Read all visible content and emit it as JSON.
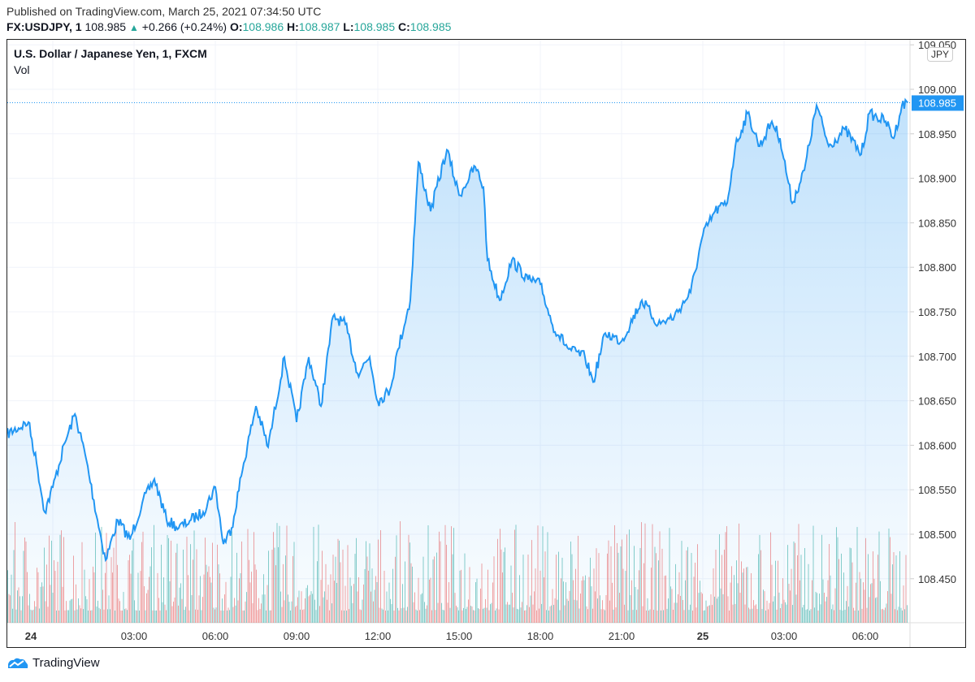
{
  "header": {
    "published": "Published on TradingView.com, March 25, 2021 07:34:50 UTC",
    "symbol": "FX:USDJPY, 1",
    "last": "108.985",
    "change": "+0.266 (+0.24%)",
    "open_label": "O:",
    "open": "108.986",
    "high_label": "H:",
    "high": "108.987",
    "low_label": "L:",
    "low": "108.985",
    "close_label": "C:",
    "close": "108.985"
  },
  "legend": {
    "title": "U.S. Dollar / Japanese Yen, 1, FXCM",
    "volume": "Vol"
  },
  "currency_button": "JPY",
  "footer": {
    "brand": "TradingView"
  },
  "colors": {
    "line": "#2196f3",
    "up": "#26a69a",
    "down": "#ef5350",
    "price_label_bg": "#2196f3"
  },
  "chart_data": {
    "type": "area",
    "ylim": [
      108.41,
      109.05
    ],
    "y_ticks": [
      "109.050",
      "109.000",
      "108.950",
      "108.900",
      "108.850",
      "108.800",
      "108.750",
      "108.700",
      "108.650",
      "108.600",
      "108.550",
      "108.500",
      "108.450"
    ],
    "x_ticks": [
      {
        "label": "24",
        "bold": true,
        "t": "24 00:00"
      },
      {
        "label": "03:00",
        "t": "24 03:00"
      },
      {
        "label": "06:00",
        "t": "24 06:00"
      },
      {
        "label": "09:00",
        "t": "24 09:00"
      },
      {
        "label": "12:00",
        "t": "24 12:00"
      },
      {
        "label": "15:00",
        "t": "24 15:00"
      },
      {
        "label": "18:00",
        "t": "24 18:00"
      },
      {
        "label": "21:00",
        "t": "24 21:00"
      },
      {
        "label": "25",
        "bold": true,
        "t": "25 00:00"
      },
      {
        "label": "03:00",
        "t": "25 03:00"
      },
      {
        "label": "06:00",
        "t": "25 06:00"
      }
    ],
    "last_price": "108.985",
    "series": [
      [
        "23 22:17",
        108.612
      ],
      [
        "23 23:06",
        108.626
      ],
      [
        "23 23:24",
        108.58
      ],
      [
        "23 23:42",
        108.525
      ],
      [
        "24 00:00",
        108.553
      ],
      [
        "24 00:27",
        108.603
      ],
      [
        "24 00:49",
        108.635
      ],
      [
        "24 01:12",
        108.589
      ],
      [
        "24 01:39",
        108.516
      ],
      [
        "24 01:57",
        108.471
      ],
      [
        "24 02:24",
        108.516
      ],
      [
        "24 02:51",
        108.494
      ],
      [
        "24 03:18",
        108.535
      ],
      [
        "24 03:45",
        108.562
      ],
      [
        "24 04:12",
        108.516
      ],
      [
        "24 04:39",
        108.507
      ],
      [
        "24 05:06",
        108.516
      ],
      [
        "24 05:33",
        108.525
      ],
      [
        "24 06:00",
        108.553
      ],
      [
        "24 06:18",
        108.489
      ],
      [
        "24 06:36",
        108.507
      ],
      [
        "24 07:03",
        108.58
      ],
      [
        "24 07:30",
        108.644
      ],
      [
        "24 07:57",
        108.598
      ],
      [
        "24 08:33",
        108.699
      ],
      [
        "24 09:00",
        108.626
      ],
      [
        "24 09:27",
        108.699
      ],
      [
        "24 09:54",
        108.644
      ],
      [
        "24 10:21",
        108.745
      ],
      [
        "24 10:48",
        108.736
      ],
      [
        "24 11:15",
        108.681
      ],
      [
        "24 11:42",
        108.699
      ],
      [
        "24 12:00",
        108.649
      ],
      [
        "24 12:27",
        108.662
      ],
      [
        "24 12:45",
        108.708
      ],
      [
        "24 13:12",
        108.763
      ],
      [
        "24 13:30",
        108.918
      ],
      [
        "24 13:57",
        108.863
      ],
      [
        "24 14:33",
        108.932
      ],
      [
        "24 15:00",
        108.881
      ],
      [
        "24 15:36",
        108.913
      ],
      [
        "24 15:54",
        108.89
      ],
      [
        "24 16:03",
        108.808
      ],
      [
        "24 16:30",
        108.763
      ],
      [
        "24 16:57",
        108.808
      ],
      [
        "24 17:33",
        108.786
      ],
      [
        "24 18:00",
        108.781
      ],
      [
        "24 18:27",
        108.735
      ],
      [
        "24 19:03",
        108.708
      ],
      [
        "24 19:39",
        108.699
      ],
      [
        "24 19:57",
        108.671
      ],
      [
        "24 20:24",
        108.726
      ],
      [
        "24 21:00",
        108.717
      ],
      [
        "24 21:45",
        108.763
      ],
      [
        "24 22:21",
        108.736
      ],
      [
        "24 22:57",
        108.745
      ],
      [
        "24 23:33",
        108.772
      ],
      [
        "25 00:00",
        108.836
      ],
      [
        "25 00:27",
        108.863
      ],
      [
        "25 00:54",
        108.872
      ],
      [
        "25 01:12",
        108.936
      ],
      [
        "25 01:39",
        108.973
      ],
      [
        "25 02:06",
        108.936
      ],
      [
        "25 02:33",
        108.964
      ],
      [
        "25 02:51",
        108.945
      ],
      [
        "25 03:18",
        108.872
      ],
      [
        "25 03:45",
        108.909
      ],
      [
        "25 04:12",
        108.982
      ],
      [
        "25 04:39",
        108.936
      ],
      [
        "25 05:15",
        108.955
      ],
      [
        "25 05:51",
        108.927
      ],
      [
        "25 06:09",
        108.973
      ],
      [
        "25 06:45",
        108.964
      ],
      [
        "25 07:03",
        108.945
      ],
      [
        "25 07:21",
        108.982
      ],
      [
        "25 07:34",
        108.985
      ]
    ]
  }
}
